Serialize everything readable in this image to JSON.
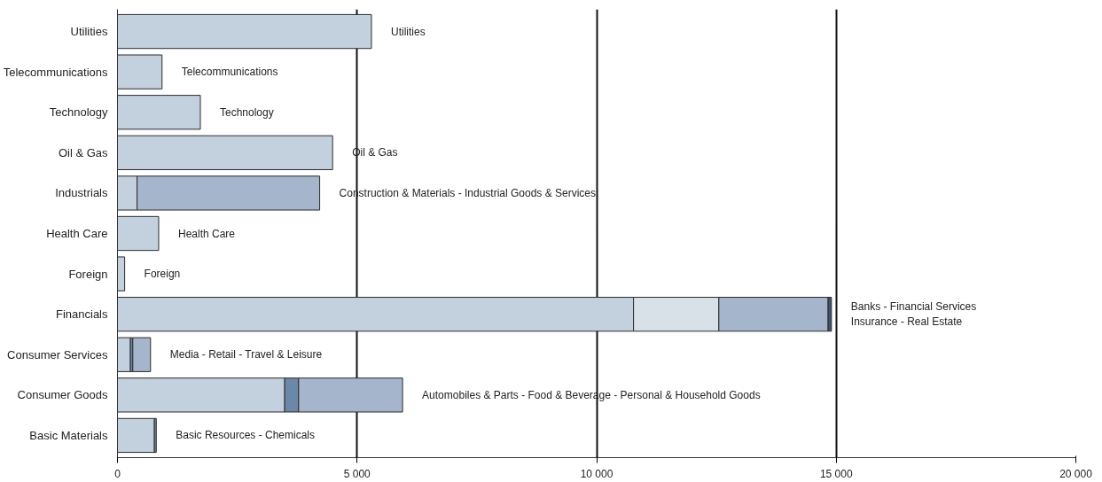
{
  "chart_data": {
    "type": "bar",
    "orientation": "horizontal",
    "stacked": true,
    "categories": [
      "Utilities",
      "Telecommunications",
      "Technology",
      "Oil & Gas",
      "Industrials",
      "Health Care",
      "Foreign",
      "Financials",
      "Consumer Services",
      "Consumer Goods",
      "Basic Materials"
    ],
    "series": [
      {
        "color": "#c3d0dd",
        "values": [
          5300,
          930,
          1730,
          4490,
          410,
          860,
          150,
          10770,
          270,
          3490,
          770
        ]
      },
      {
        "colors": [
          null,
          null,
          null,
          null,
          "#a5b5cb",
          null,
          null,
          "#d9e1e8",
          "#6b88a8",
          "#6b88a8",
          "#6b88a8"
        ],
        "values": [
          null,
          null,
          null,
          null,
          3810,
          null,
          null,
          1780,
          50,
          290,
          40
        ]
      },
      {
        "color": "#a5b5cb",
        "values": [
          null,
          null,
          null,
          null,
          null,
          null,
          null,
          2280,
          370,
          2170,
          null
        ]
      },
      {
        "color": "#3c5470",
        "values": [
          null,
          null,
          null,
          null,
          null,
          null,
          null,
          70,
          null,
          null,
          null
        ]
      }
    ],
    "xlim": [
      0,
      20000
    ],
    "xticks": [
      0,
      {
        "value": 5000,
        "label": "5 000"
      },
      {
        "value": 10000,
        "label": "10 000"
      },
      {
        "value": 15000,
        "label": "15 000"
      },
      {
        "value": 20000,
        "label": "20 000"
      }
    ],
    "grid": "x",
    "annotations": [
      "Utilities",
      "Telecommunications",
      "Technology",
      "Oil & Gas",
      "Construction & Materials - Industrial Goods & Services",
      "Health Care",
      "Foreign",
      "Banks - Financial Services\nInsurance - Real Estate",
      "Media - Retail - Travel & Leisure",
      "Automobiles & Parts - Food & Beverage  - Personal & Household Goods",
      "Basic Resources - Chemicals"
    ]
  }
}
